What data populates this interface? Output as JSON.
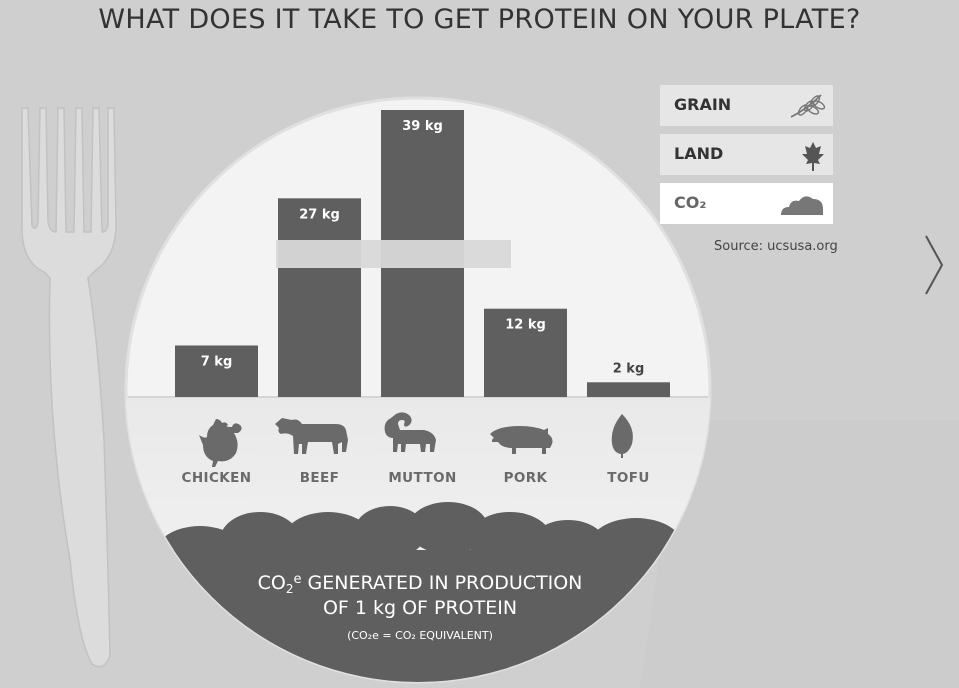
{
  "title": "WHAT DOES IT TAKE TO GET PROTEIN ON YOUR PLATE?",
  "legend": [
    {
      "label": "GRAIN",
      "icon": "wheat-icon"
    },
    {
      "label": "LAND",
      "icon": "maple-leaf-icon"
    },
    {
      "label": "CO₂",
      "icon": "cloud-icon",
      "active": true
    }
  ],
  "source": "Source: ucsusa.org",
  "footer": {
    "line1_prefix": "CO",
    "line1_sub": "2",
    "line1_sup": "e",
    "line1_rest": " GENERATED IN PRODUCTION",
    "line2": "OF 1 kg OF PROTEIN",
    "note": "(CO₂e = CO₂ EQUIVALENT)"
  },
  "chart_data": {
    "type": "bar",
    "categories": [
      "CHICKEN",
      "BEEF",
      "MUTTON",
      "PORK",
      "TOFU"
    ],
    "values": [
      7,
      27,
      39,
      12,
      2
    ],
    "value_labels": [
      "7 kg",
      "27 kg",
      "39 kg",
      "12 kg",
      "2 kg"
    ],
    "unit": "kg",
    "icons": [
      "chicken-icon",
      "cow-icon",
      "ram-icon",
      "pig-icon",
      "leaf-icon"
    ],
    "ylim": [
      0,
      39
    ],
    "colors": {
      "bar": "#5f5f5f",
      "footer": "#5f5f5f"
    }
  }
}
